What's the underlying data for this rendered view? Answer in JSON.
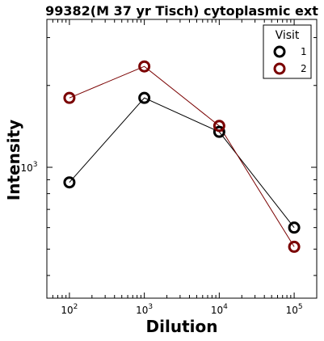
{
  "chart_data": {
    "type": "line",
    "title": "99382(M 37 yr Tisch) cytoplasmic ext",
    "xlabel": "Dilution",
    "ylabel": "Intensity",
    "xscale": "log",
    "yscale": "log",
    "xlim": [
      50,
      200000
    ],
    "ylim": [
      330,
      3500
    ],
    "x_ticks": [
      {
        "value": 100,
        "base": "10",
        "exp": "2"
      },
      {
        "value": 1000,
        "base": "10",
        "exp": "3"
      },
      {
        "value": 10000,
        "base": "10",
        "exp": "4"
      },
      {
        "value": 100000,
        "base": "10",
        "exp": "5"
      }
    ],
    "y_ticks": [
      {
        "value": 1000,
        "base": "10",
        "exp": "3"
      }
    ],
    "legend": {
      "title": "Visit",
      "placement": "top-right"
    },
    "x": [
      100,
      1000,
      10000,
      100000
    ],
    "series": [
      {
        "name": "1",
        "color": "#000000",
        "values": [
          880,
          1800,
          1350,
          600
        ]
      },
      {
        "name": "2",
        "color": "#7a0000",
        "values": [
          1800,
          2350,
          1420,
          510
        ]
      }
    ],
    "grid": false
  }
}
